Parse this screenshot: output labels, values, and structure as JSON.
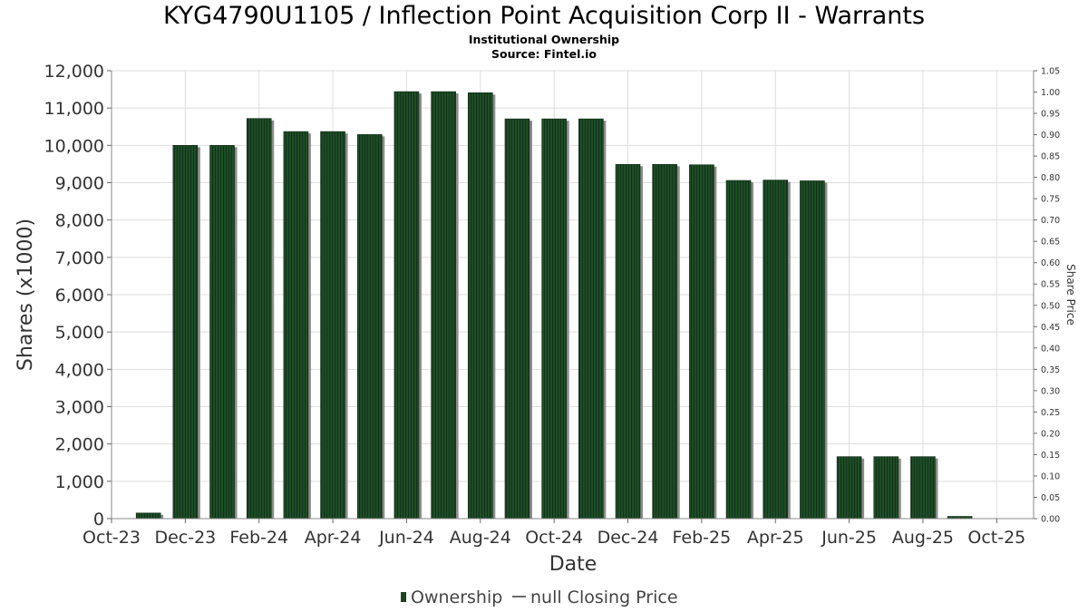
{
  "colors": {
    "bar_fill": "#1e4d26",
    "bar_stripe": "#11331a",
    "bar_shadow": "#8c8c8c",
    "grid": "#dddddd",
    "axis_text": "#333333",
    "legend_text": "#444444"
  },
  "chart_data": {
    "type": "bar",
    "title": "KYG4790U1105 / Inflection Point Acquisition Corp II - Warrants",
    "subtitle": "Institutional Ownership",
    "source": "Source: Fintel.io",
    "xlabel": "Date",
    "ylabel": "Shares (x1000)",
    "y2label": "Share Price",
    "ylim": [
      0,
      12000
    ],
    "y2lim": [
      0,
      1.05
    ],
    "x_ticks": [
      "Oct-23",
      "Dec-23",
      "Feb-24",
      "Apr-24",
      "Jun-24",
      "Aug-24",
      "Oct-24",
      "Dec-24",
      "Feb-25",
      "Apr-25",
      "Jun-25",
      "Aug-25",
      "Oct-25"
    ],
    "y_ticks": [
      "0",
      "1,000",
      "2,000",
      "3,000",
      "4,000",
      "5,000",
      "6,000",
      "7,000",
      "8,000",
      "9,000",
      "10,000",
      "11,000",
      "12,000"
    ],
    "y2_ticks": [
      "0.00",
      "0.05",
      "0.10",
      "0.15",
      "0.20",
      "0.25",
      "0.30",
      "0.35",
      "0.40",
      "0.45",
      "0.50",
      "0.55",
      "0.60",
      "0.65",
      "0.70",
      "0.75",
      "0.80",
      "0.85",
      "0.90",
      "0.95",
      "1.00",
      "1.05"
    ],
    "x_tick_positions": [
      0,
      2,
      4,
      6,
      8,
      10,
      12,
      14,
      16,
      18,
      20,
      22,
      24
    ],
    "bar_positions": [
      1,
      2,
      3,
      4,
      5,
      6,
      7,
      8,
      9,
      10,
      11,
      12,
      13,
      14,
      15,
      16,
      17,
      18,
      19,
      20,
      21,
      22,
      23
    ],
    "series": [
      {
        "name": "Ownership",
        "values": [
          150,
          10000,
          10000,
          10720,
          10370,
          10370,
          10290,
          11440,
          11440,
          11410,
          10710,
          10710,
          10710,
          9490,
          9490,
          9480,
          9060,
          9070,
          9050,
          1660,
          1660,
          1660,
          60
        ]
      },
      {
        "name": "null Closing Price",
        "values": []
      }
    ],
    "legend": {
      "position": "bottom-center",
      "entries": [
        "Ownership",
        "null Closing Price"
      ]
    },
    "grid": true
  }
}
